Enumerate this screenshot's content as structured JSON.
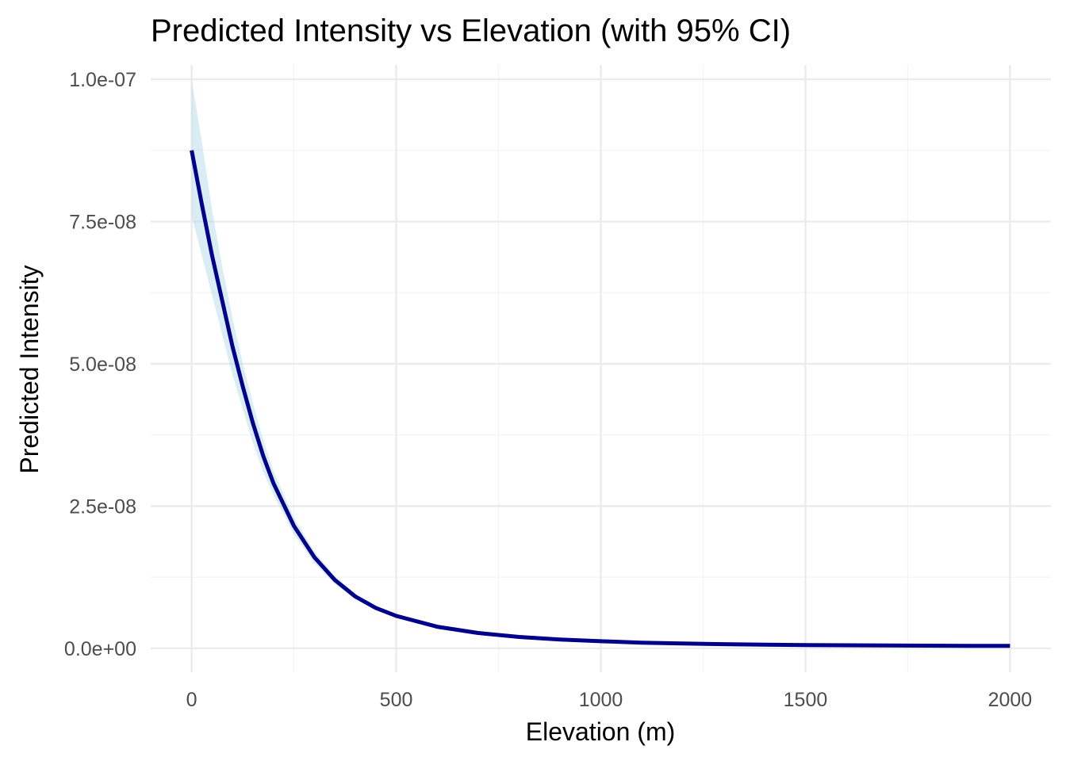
{
  "chart_data": {
    "type": "line",
    "title": "Predicted Intensity vs Elevation (with 95% CI)",
    "xlabel": "Elevation (m)",
    "ylabel": "Predicted Intensity",
    "xlim": [
      -100,
      2100
    ],
    "ylim": [
      -4.2e-09,
      1.025e-07
    ],
    "x_ticks": [
      0,
      500,
      1000,
      1500,
      2000
    ],
    "x_tick_labels": [
      "0",
      "500",
      "1000",
      "1500",
      "2000"
    ],
    "y_ticks": [
      0,
      2.5e-08,
      5e-08,
      7.5e-08,
      1e-07
    ],
    "y_tick_labels": [
      "0.0e+00",
      "2.5e-08",
      "5.0e-08",
      "7.5e-08",
      "1.0e-07"
    ],
    "grid": true,
    "line_color": "#00008b",
    "ci_color": "#add8e6",
    "series": [
      {
        "x": [
          0,
          25,
          50,
          75,
          100,
          125,
          150,
          175,
          200,
          250,
          300,
          350,
          400,
          450,
          500,
          600,
          700,
          800,
          900,
          1000,
          1100,
          1200,
          1300,
          1400,
          1500,
          1600,
          1700,
          1800,
          1900,
          2000
        ],
        "y": [
          8.75e-08,
          7.8e-08,
          6.9e-08,
          6.1e-08,
          5.3e-08,
          4.6e-08,
          3.95e-08,
          3.38e-08,
          2.9e-08,
          2.15e-08,
          1.6e-08,
          1.2e-08,
          9.1e-09,
          7.1e-09,
          5.7e-09,
          3.8e-09,
          2.7e-09,
          2e-09,
          1.55e-09,
          1.25e-09,
          1e-09,
          8.5e-10,
          7.3e-10,
          6.4e-10,
          5.8e-10,
          5.3e-10,
          4.9e-10,
          4.6e-10,
          4.4e-10,
          4.2e-10
        ],
        "lower": [
          7.6e-08,
          6.9e-08,
          6.2e-08,
          5.5e-08,
          4.8e-08,
          4.2e-08,
          3.6e-08,
          3.1e-08,
          2.7e-08,
          2e-08,
          1.5e-08,
          1.13e-08,
          8.6e-09,
          6.7e-09,
          5.4e-09,
          3.6e-09,
          2.5e-09,
          1.85e-09,
          1.4e-09,
          1.1e-09,
          8.8e-10,
          7.3e-10,
          6.1e-10,
          5.2e-10,
          4.6e-10,
          4.1e-10,
          3.7e-10,
          3.4e-10,
          3.2e-10,
          3e-10
        ],
        "upper": [
          1e-07,
          8.9e-08,
          7.7e-08,
          6.7e-08,
          5.8e-08,
          5e-08,
          4.3e-08,
          3.66e-08,
          3.12e-08,
          2.3e-08,
          1.7e-08,
          1.27e-08,
          9.6e-09,
          7.5e-09,
          6e-09,
          4e-09,
          2.9e-09,
          2.15e-09,
          1.7e-09,
          1.4e-09,
          1.15e-09,
          1e-09,
          8.7e-10,
          7.8e-10,
          7.2e-10,
          6.7e-10,
          6.3e-10,
          6e-10,
          5.8e-10,
          5.6e-10
        ]
      }
    ]
  }
}
